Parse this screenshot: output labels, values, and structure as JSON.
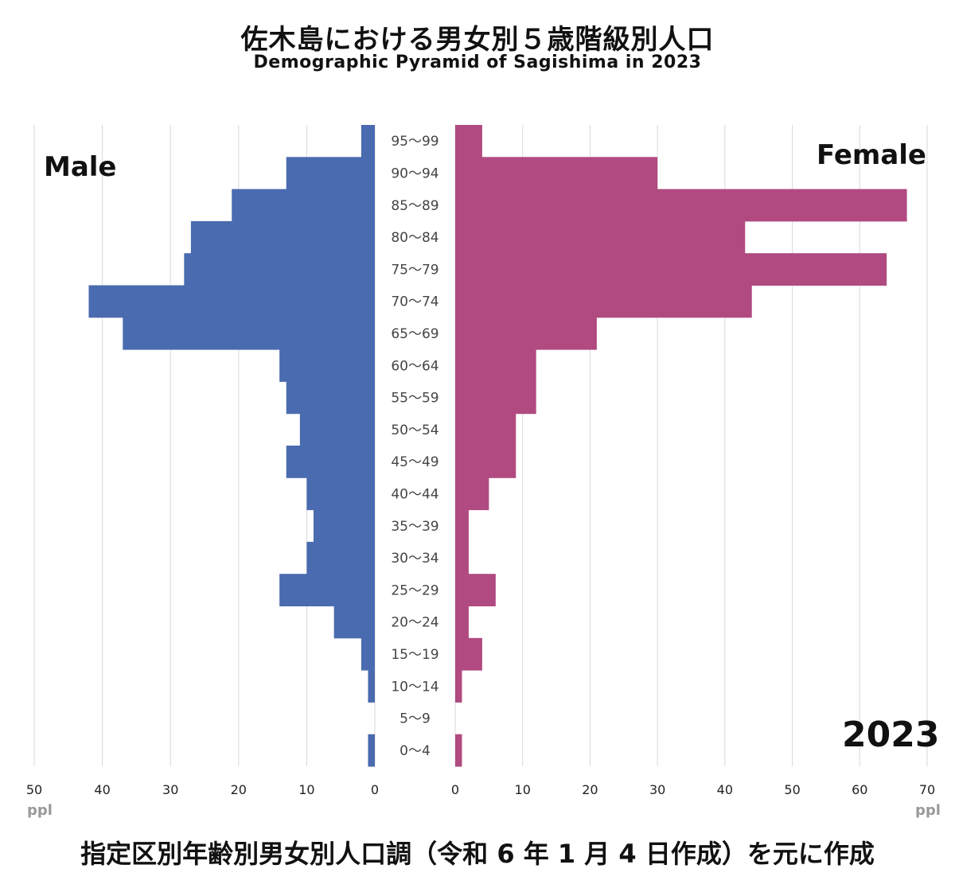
{
  "header": {
    "title_jp": "佐木島における男女別５歳階級別人口",
    "title_en": "Demographic Pyramid of Sagishima in 2023"
  },
  "labels": {
    "male": "Male",
    "female": "Female",
    "year": "2023",
    "unit_left": "ppl",
    "unit_right": "ppl"
  },
  "footer": "指定区別年齢別男女別人口調（令和 6 年 1 月 4 日作成）を元に作成",
  "colors": {
    "male": "#4a6baf",
    "female": "#b04a80",
    "grid": "#d9d9d9"
  },
  "chart_data": {
    "type": "bar",
    "orientation": "horizontal-population-pyramid",
    "title": "佐木島における男女別５歳階級別人口",
    "subtitle": "Demographic Pyramid of Sagishima in 2023",
    "categories": [
      "0〜4",
      "5〜9",
      "10〜14",
      "15〜19",
      "20〜24",
      "25〜29",
      "30〜34",
      "35〜39",
      "40〜44",
      "45〜49",
      "50〜54",
      "55〜59",
      "60〜64",
      "65〜69",
      "70〜74",
      "75〜79",
      "80〜84",
      "85〜89",
      "90〜94",
      "95〜99"
    ],
    "series": [
      {
        "name": "Male",
        "values": [
          1,
          0,
          1,
          2,
          6,
          14,
          10,
          9,
          10,
          13,
          11,
          13,
          14,
          37,
          42,
          28,
          27,
          21,
          13,
          2
        ]
      },
      {
        "name": "Female",
        "values": [
          1,
          0,
          1,
          4,
          2,
          6,
          2,
          2,
          5,
          9,
          9,
          12,
          12,
          21,
          44,
          64,
          43,
          67,
          30,
          4
        ]
      }
    ],
    "male_axis": {
      "ticks": [
        50,
        40,
        30,
        20,
        10,
        0
      ],
      "xlim": [
        0,
        50
      ],
      "direction": "reversed"
    },
    "female_axis": {
      "ticks": [
        0,
        10,
        20,
        30,
        40,
        50,
        60,
        70
      ],
      "xlim": [
        0,
        70
      ]
    },
    "grid": true
  }
}
